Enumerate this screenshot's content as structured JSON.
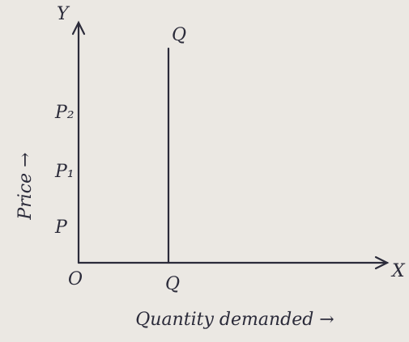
{
  "axes": {
    "y_axis_label": "Y",
    "x_axis_label": "X",
    "origin": "O",
    "y_title": "Price →",
    "x_title": "Quantity demanded →"
  },
  "demand_curve": {
    "label": "Q",
    "quantity_label": "Q"
  },
  "price_levels": [
    "P",
    "P₁",
    "P₂"
  ]
}
